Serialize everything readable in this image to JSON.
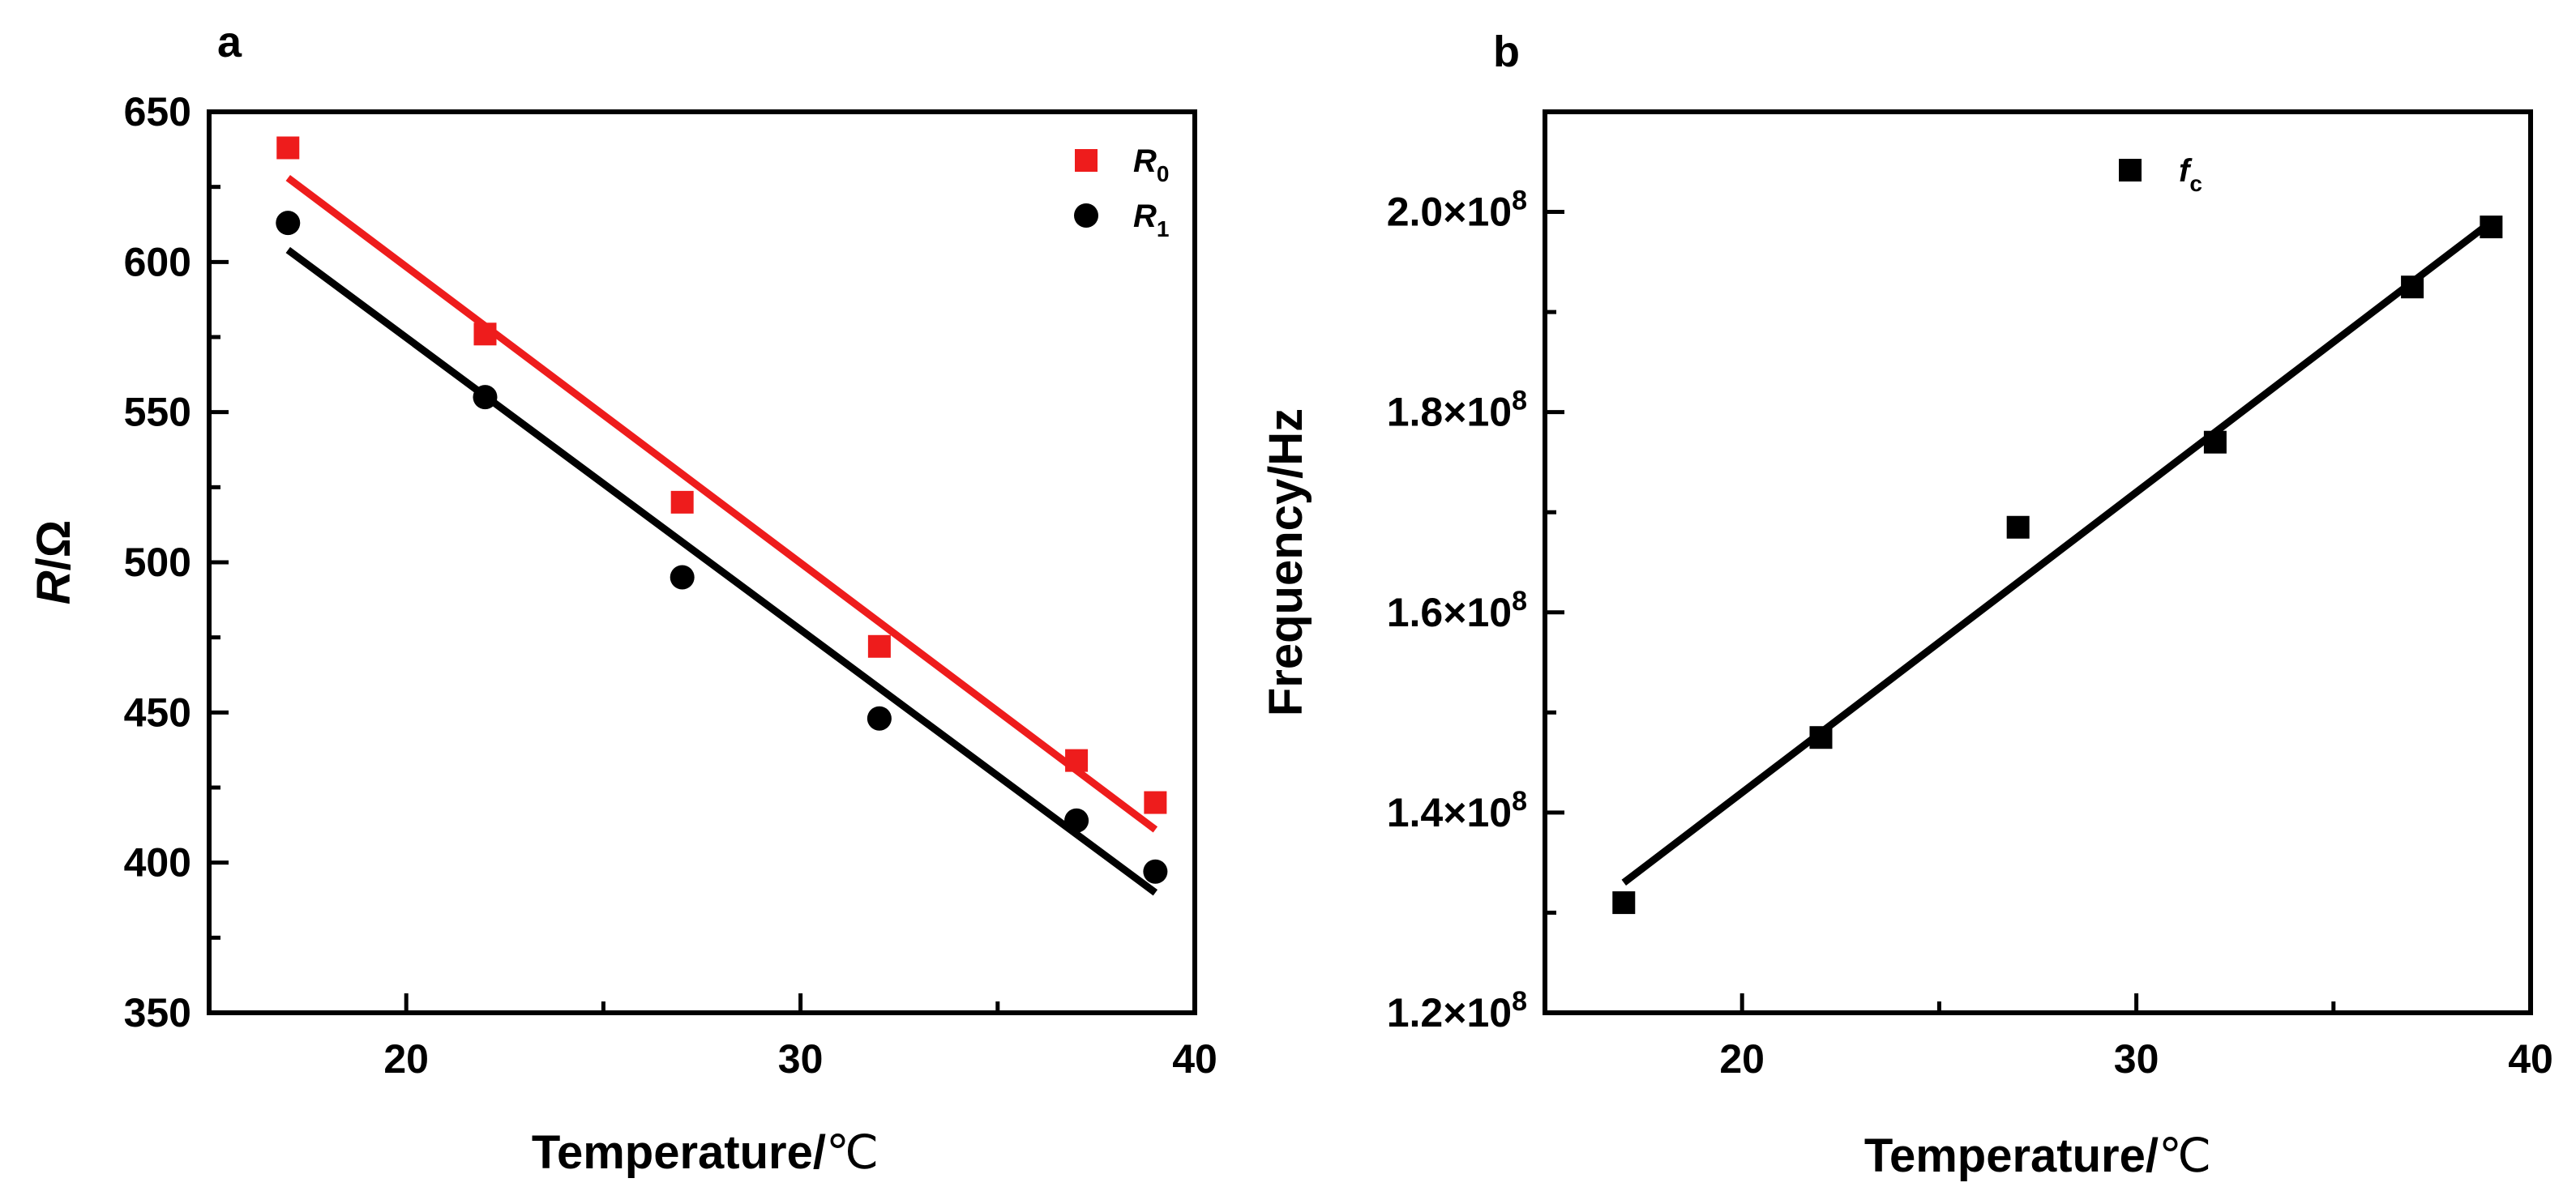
{
  "chart_data": [
    {
      "id": "a",
      "type": "scatter",
      "panel_label": "a",
      "xlabel": "Temperature/",
      "xunit": "℃",
      "ylabel_italic": "R",
      "ylabel_rest": "/Ω",
      "xlim": [
        15,
        40
      ],
      "ylim": [
        350,
        650
      ],
      "x_major_ticks": [
        20,
        30,
        40
      ],
      "x_minor_ticks": [
        15,
        25,
        35
      ],
      "x_tick_labels": [
        "20",
        "30",
        "40"
      ],
      "y_major_ticks": [
        350,
        400,
        450,
        500,
        550,
        600,
        650
      ],
      "y_minor_ticks": [
        375,
        425,
        475,
        525,
        575,
        625
      ],
      "y_tick_labels": [
        "350",
        "400",
        "450",
        "500",
        "550",
        "600",
        "650"
      ],
      "legend_position": "top-right",
      "series": [
        {
          "name": "R0",
          "legend_main": "R",
          "legend_sub": "0",
          "marker": "square",
          "color": "#ee1c1c",
          "x": [
            17,
            22,
            27,
            32,
            37,
            39
          ],
          "y": [
            638,
            576,
            520,
            472,
            434,
            420
          ],
          "fit": {
            "x": [
              17,
              39
            ],
            "y": [
              628,
              411
            ]
          }
        },
        {
          "name": "R1",
          "legend_main": "R",
          "legend_sub": "1",
          "marker": "circle",
          "color": "#000000",
          "x": [
            17,
            22,
            27,
            32,
            37,
            39
          ],
          "y": [
            613,
            555,
            495,
            448,
            414,
            397
          ],
          "fit": {
            "x": [
              17,
              39
            ],
            "y": [
              604,
              390
            ]
          }
        }
      ]
    },
    {
      "id": "b",
      "type": "scatter",
      "panel_label": "b",
      "xlabel": "Temperature/",
      "xunit": "℃",
      "ylabel": "Frequency/Hz",
      "xlim": [
        15,
        40
      ],
      "ylim": [
        120000000.0,
        210000000.0
      ],
      "x_major_ticks": [
        20,
        30,
        40
      ],
      "x_minor_ticks": [
        15,
        25,
        35
      ],
      "x_tick_labels": [
        "20",
        "30",
        "40"
      ],
      "y_major_ticks": [
        120000000.0,
        140000000.0,
        160000000.0,
        180000000.0,
        200000000.0
      ],
      "y_minor_ticks": [
        130000000.0,
        150000000.0,
        170000000.0,
        190000000.0
      ],
      "y_tick_mantissas": [
        "1.2",
        "1.4",
        "1.6",
        "1.8",
        "2.0"
      ],
      "y_tick_base": "×10",
      "y_tick_exponent": "8",
      "legend_position": "top-center",
      "series": [
        {
          "name": "fc",
          "legend_main": "f",
          "legend_sub": "c",
          "marker": "square",
          "color": "#000000",
          "x": [
            17,
            22,
            27,
            32,
            37,
            39
          ],
          "y": [
            131000000.0,
            147500000.0,
            168500000.0,
            177000000.0,
            192500000.0,
            198500000.0
          ],
          "fit": {
            "x": [
              17,
              39
            ],
            "y": [
              133000000.0,
              199000000.0
            ]
          }
        }
      ]
    }
  ]
}
